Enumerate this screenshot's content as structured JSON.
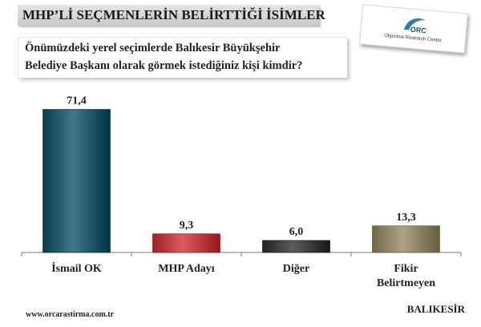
{
  "header": {
    "title": "MHP’Lİ SEÇMENLERİN BELİRTTİĞİ İSİMLER"
  },
  "logo": {
    "mark": "ORC",
    "subtitle": "Objective Research Center"
  },
  "question": {
    "line1": "Önümüzdeki yerel seçimlerde Balıkesir Büyükşehir",
    "line2": "Belediye Başkanı olarak görmek istediğiniz kişi kimdir?"
  },
  "chart_data": {
    "type": "bar",
    "categories": [
      [
        "İsmail OK"
      ],
      [
        "MHP Adayı"
      ],
      [
        "Diğer"
      ],
      [
        "Fikir",
        "Belirtmeyen"
      ]
    ],
    "values": [
      71.4,
      9.3,
      6.0,
      13.3
    ],
    "value_labels": [
      "71,4",
      "9,3",
      "6,0",
      "13,3"
    ],
    "colors": [
      "#1f5566",
      "#b83a3f",
      "#3a3a3a",
      "#8a8060"
    ],
    "ylim": [
      0,
      80
    ],
    "grid": false
  },
  "footer": {
    "url": "www.orcarastirma.com.tr",
    "city": "BALIKESİR"
  }
}
